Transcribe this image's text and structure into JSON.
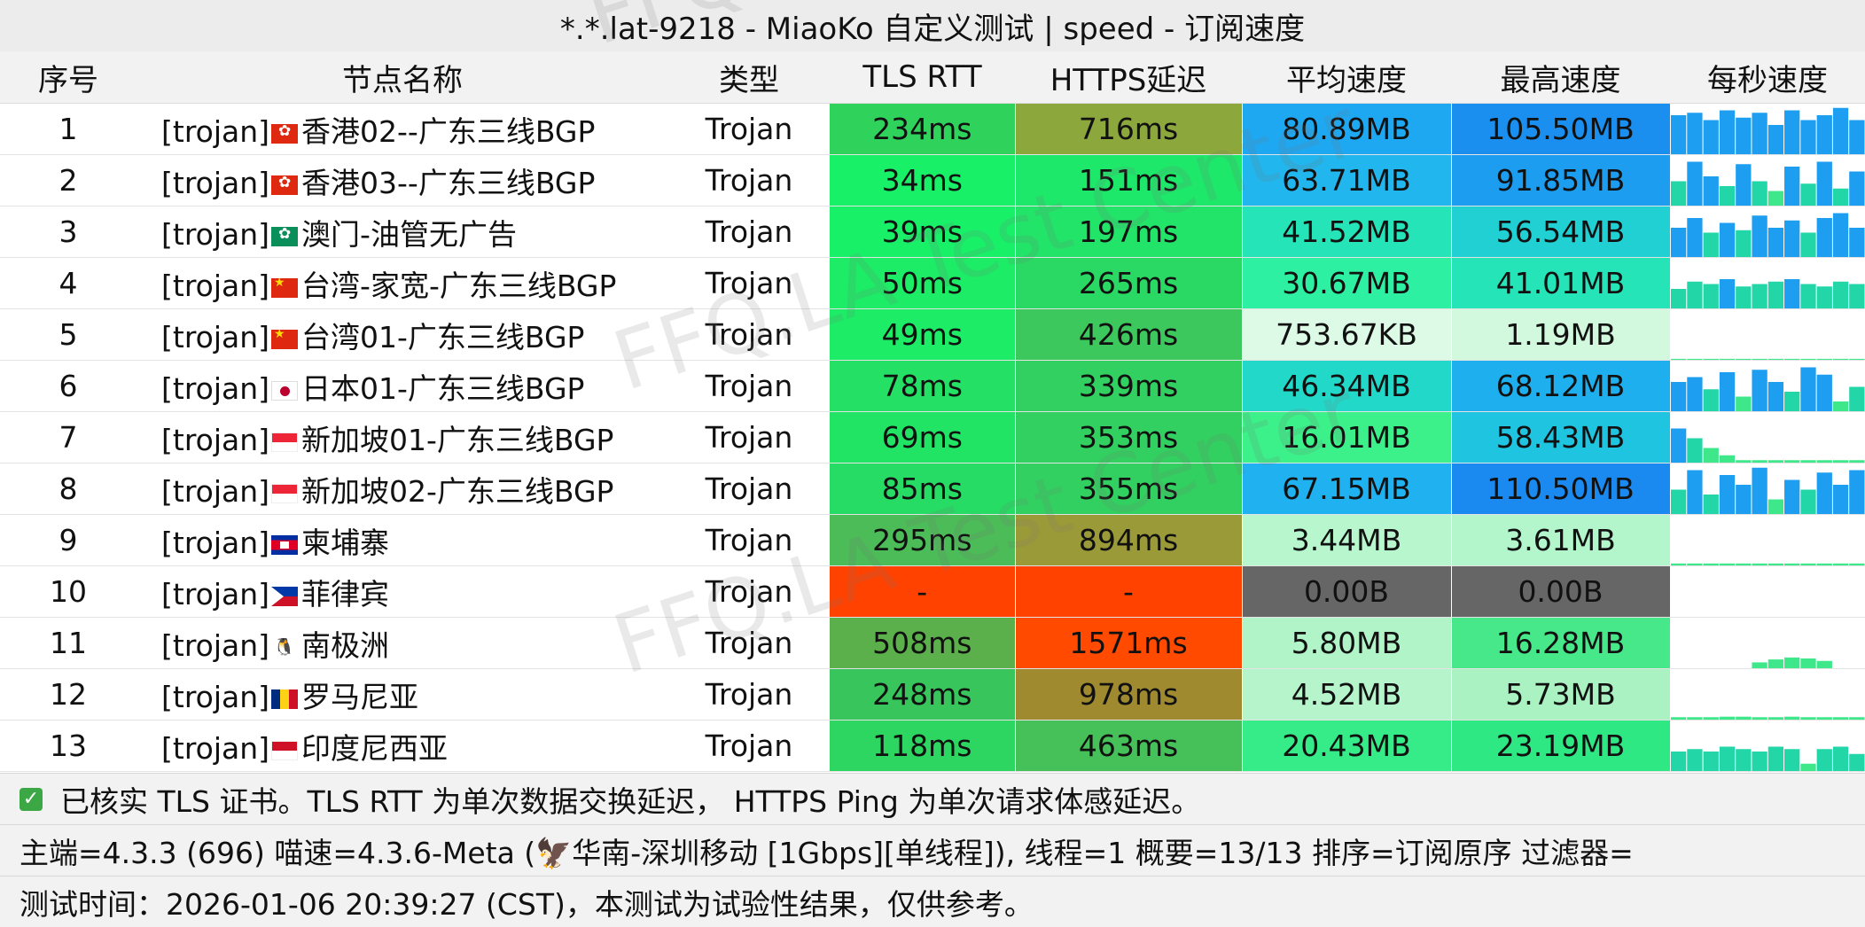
{
  "title": "*.*.lat-9218 - MiaoKo 自定义测试 | speed - 订阅速度",
  "watermark": "FFQ.LA Test Center",
  "columns": [
    "序号",
    "节点名称",
    "类型",
    "TLS RTT",
    "HTTPS延迟",
    "平均速度",
    "最高速度",
    "每秒速度"
  ],
  "rows": [
    {
      "idx": "1",
      "tag": "[trojan]",
      "flag": "hk",
      "name": "香港02--广东三线BGP",
      "type": "Trojan",
      "tls": "234ms",
      "tls_color": "#2fd35c",
      "https": "716ms",
      "https_color": "#8ca83c",
      "avg": "80.89MB",
      "avg_color": "#1ea8f2",
      "max": "105.50MB",
      "max_color": "#1a8ff0",
      "spark": [
        0.8,
        0.85,
        0.7,
        0.9,
        0.75,
        0.85,
        0.6,
        0.9,
        0.7,
        0.8,
        0.95,
        0.7
      ]
    },
    {
      "idx": "2",
      "tag": "[trojan]",
      "flag": "hk",
      "name": "香港03--广东三线BGP",
      "type": "Trojan",
      "tls": "34ms",
      "tls_color": "#18f068",
      "https": "151ms",
      "https_color": "#1de86a",
      "avg": "63.71MB",
      "avg_color": "#22b6ee",
      "max": "91.85MB",
      "max_color": "#1c9df0",
      "spark": [
        0.5,
        0.9,
        0.6,
        0.4,
        0.85,
        0.5,
        0.3,
        0.8,
        0.45,
        0.9,
        0.35,
        0.7
      ]
    },
    {
      "idx": "3",
      "tag": "[trojan]",
      "flag": "mo",
      "name": "澳门-油管无广告",
      "type": "Trojan",
      "tls": "39ms",
      "tls_color": "#18f068",
      "https": "197ms",
      "https_color": "#22e468",
      "avg": "41.52MB",
      "avg_color": "#24e4b8",
      "max": "56.54MB",
      "max_color": "#20d0d2",
      "spark": [
        0.6,
        0.8,
        0.5,
        0.7,
        0.55,
        0.85,
        0.6,
        0.75,
        0.5,
        0.8,
        0.9,
        0.6
      ]
    },
    {
      "idx": "4",
      "tag": "[trojan]",
      "flag": "cn",
      "name": "台湾-家宽-广东三线BGP",
      "type": "Trojan",
      "tls": "50ms",
      "tls_color": "#1cec66",
      "https": "265ms",
      "https_color": "#2ad864",
      "avg": "30.67MB",
      "avg_color": "#2ef0a2",
      "max": "41.01MB",
      "max_color": "#24e4b8",
      "spark": [
        0.4,
        0.55,
        0.5,
        0.6,
        0.45,
        0.5,
        0.55,
        0.6,
        0.5,
        0.45,
        0.55,
        0.5
      ]
    },
    {
      "idx": "5",
      "tag": "[trojan]",
      "flag": "cn",
      "name": "台湾01-广东三线BGP",
      "type": "Trojan",
      "tls": "49ms",
      "tls_color": "#1cec66",
      "https": "426ms",
      "https_color": "#3cc85c",
      "avg": "753.67KB",
      "avg_color": "#dcfae6",
      "max": "1.19MB",
      "max_color": "#d2f8de",
      "spark": [
        0.02,
        0.02,
        0.02,
        0.02,
        0.02,
        0.02,
        0.02,
        0.02,
        0.02,
        0.02,
        0.02,
        0.02
      ]
    },
    {
      "idx": "6",
      "tag": "[trojan]",
      "flag": "jp",
      "name": "日本01-广东三线BGP",
      "type": "Trojan",
      "tls": "78ms",
      "tls_color": "#24e064",
      "https": "339ms",
      "https_color": "#32d060",
      "avg": "46.34MB",
      "avg_color": "#22d8c8",
      "max": "68.12MB",
      "max_color": "#1eb0ee",
      "spark": [
        0.6,
        0.7,
        0.45,
        0.8,
        0.3,
        0.85,
        0.6,
        0.4,
        0.9,
        0.75,
        0.2,
        0.5
      ]
    },
    {
      "idx": "7",
      "tag": "[trojan]",
      "flag": "sg",
      "name": "新加坡01-广东三线BGP",
      "type": "Trojan",
      "tls": "69ms",
      "tls_color": "#22e464",
      "https": "353ms",
      "https_color": "#32d060",
      "avg": "16.01MB",
      "avg_color": "#3cf08a",
      "max": "58.43MB",
      "max_color": "#1ec4e0",
      "spark": [
        0.7,
        0.5,
        0.3,
        0.15,
        0.05,
        0.05,
        0.05,
        0.05,
        0.05,
        0.05,
        0.05,
        0.05
      ]
    },
    {
      "idx": "8",
      "tag": "[trojan]",
      "flag": "sg",
      "name": "新加坡02-广东三线BGP",
      "type": "Trojan",
      "tls": "85ms",
      "tls_color": "#26dc64",
      "https": "355ms",
      "https_color": "#32d060",
      "avg": "67.15MB",
      "avg_color": "#20b2f0",
      "max": "110.50MB",
      "max_color": "#1a8af0",
      "spark": [
        0.5,
        0.9,
        0.4,
        0.8,
        0.6,
        0.95,
        0.3,
        0.7,
        0.5,
        0.85,
        0.6,
        0.9
      ]
    },
    {
      "idx": "9",
      "tag": "[trojan]",
      "flag": "kh",
      "name": "柬埔寨",
      "type": "Trojan",
      "tls": "295ms",
      "tls_color": "#4cbc58",
      "https": "894ms",
      "https_color": "#9a9a38",
      "avg": "3.44MB",
      "avg_color": "#b8f6ce",
      "max": "3.61MB",
      "max_color": "#b4f6cc",
      "spark": [
        0.04,
        0.04,
        0.04,
        0.04,
        0.04,
        0.04,
        0.04,
        0.04,
        0.04,
        0.04,
        0.04,
        0.04
      ]
    },
    {
      "idx": "10",
      "tag": "[trojan]",
      "flag": "ph",
      "name": "菲律宾",
      "type": "Trojan",
      "tls": "-",
      "tls_color": "#ff4200",
      "https": "-",
      "https_color": "#ff4200",
      "avg": "0.00B",
      "avg_color": "#666666",
      "max": "0.00B",
      "max_color": "#666666",
      "spark": [
        0,
        0,
        0,
        0,
        0,
        0,
        0,
        0,
        0,
        0,
        0,
        0
      ]
    },
    {
      "idx": "11",
      "tag": "[trojan]",
      "flag": "aq",
      "name": "南极洲",
      "type": "Trojan",
      "tls": "508ms",
      "tls_color": "#5cb04c",
      "https": "1571ms",
      "https_color": "#ff4a00",
      "avg": "5.80MB",
      "avg_color": "#b0f4c8",
      "max": "16.28MB",
      "max_color": "#46e88a",
      "spark": [
        0,
        0,
        0,
        0,
        0,
        0.12,
        0.18,
        0.22,
        0.2,
        0.15,
        0,
        0
      ]
    },
    {
      "idx": "12",
      "tag": "[trojan]",
      "flag": "ro",
      "name": "罗马尼亚",
      "type": "Trojan",
      "tls": "248ms",
      "tls_color": "#38c65c",
      "https": "978ms",
      "https_color": "#a08a30",
      "avg": "4.52MB",
      "avg_color": "#b6f4cc",
      "max": "5.73MB",
      "max_color": "#aaf2c2",
      "spark": [
        0.05,
        0.05,
        0.05,
        0.06,
        0.06,
        0.05,
        0.05,
        0.06,
        0.05,
        0.05,
        0.05,
        0.05
      ]
    },
    {
      "idx": "13",
      "tag": "[trojan]",
      "flag": "id",
      "name": "印度尼西亚",
      "type": "Trojan",
      "tls": "118ms",
      "tls_color": "#2cd660",
      "https": "463ms",
      "https_color": "#46c058",
      "avg": "20.43MB",
      "avg_color": "#36ec88",
      "max": "23.19MB",
      "max_color": "#2ee884",
      "spark": [
        0.4,
        0.45,
        0.4,
        0.5,
        0.45,
        0.4,
        0.5,
        0.45,
        0.15,
        0.45,
        0.5,
        0.35
      ]
    }
  ],
  "footer": {
    "note": "已核实 TLS 证书。TLS RTT 为单次数据交换延迟， HTTPS Ping 为单次请求体感延迟。",
    "info": "主端=4.3.3 (696) 喵速=4.3.6-Meta (🦅华南-深圳移动 [1Gbps][单线程]), 线程=1 概要=13/13 排序=订阅原序 过滤器=",
    "time": "测试时间：2026-01-06 20:39:27 (CST)，本测试为试验性结果，仅供参考。"
  }
}
